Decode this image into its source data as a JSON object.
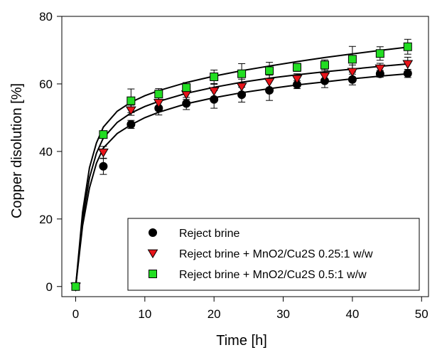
{
  "chart_data": {
    "type": "scatter",
    "xlabel": "Time [h]",
    "ylabel": "Copper disolution [%]",
    "xlim": [
      -2,
      51
    ],
    "ylim": [
      -3,
      80
    ],
    "xticks": [
      "0",
      "10",
      "20",
      "30",
      "40",
      "50"
    ],
    "xtick_values": [
      0,
      10,
      20,
      30,
      40,
      50
    ],
    "yticks": [
      "0",
      "20",
      "40",
      "60",
      "80"
    ],
    "ytick_values": [
      0,
      20,
      40,
      60,
      80
    ],
    "legend_position": "bottom-right",
    "series": [
      {
        "name": "Reject brine",
        "marker": "circle",
        "color": "#000000",
        "x": [
          0,
          4,
          8,
          12,
          16,
          20,
          24,
          28,
          32,
          36,
          40,
          44,
          48
        ],
        "y": [
          0,
          35.6,
          48.0,
          52.8,
          54.2,
          55.4,
          56.8,
          58.1,
          59.8,
          60.9,
          61.3,
          63.0,
          63.1
        ],
        "err": [
          0,
          2.4,
          1.2,
          2.0,
          1.8,
          2.6,
          2.2,
          3.0,
          1.2,
          2.0,
          1.6,
          1.0,
          1.2
        ]
      },
      {
        "name": "Reject brine + MnO2/Cu2S 0.25:1 w/w",
        "marker": "triangle-down",
        "color": "#e8141a",
        "x": [
          0,
          4,
          8,
          12,
          16,
          20,
          24,
          28,
          32,
          36,
          40,
          44,
          48
        ],
        "y": [
          0,
          39.7,
          52.2,
          54.4,
          56.9,
          57.9,
          59.2,
          60.6,
          61.5,
          62.3,
          63.6,
          64.6,
          65.9
        ],
        "err": [
          0,
          1.8,
          1.5,
          1.8,
          1.5,
          2.0,
          2.2,
          2.0,
          1.5,
          1.8,
          2.0,
          1.5,
          2.0
        ]
      },
      {
        "name": "Reject brine + MnO2/Cu2S 0.5:1 w/w",
        "marker": "square",
        "color": "#22dd22",
        "x": [
          0,
          4,
          8,
          12,
          16,
          20,
          24,
          28,
          32,
          36,
          40,
          44,
          48
        ],
        "y": [
          0,
          45.0,
          55.0,
          57.0,
          58.9,
          62.1,
          63.0,
          63.9,
          64.9,
          65.6,
          67.3,
          69.0,
          71.0
        ],
        "err": [
          0,
          0.8,
          3.5,
          1.6,
          1.5,
          2.0,
          3.0,
          2.5,
          1.2,
          1.5,
          3.8,
          2.0,
          2.2
        ]
      }
    ],
    "fits": [
      {
        "x": [
          0,
          1,
          2,
          3,
          4,
          6,
          8,
          10,
          12,
          16,
          20,
          24,
          28,
          32,
          36,
          40,
          44,
          48
        ],
        "y": [
          0,
          18.0,
          29.2,
          36.5,
          41.0,
          45.3,
          47.9,
          50.0,
          51.6,
          54.1,
          55.9,
          57.4,
          58.6,
          59.7,
          60.6,
          61.5,
          62.3,
          63.0
        ]
      },
      {
        "x": [
          0,
          1,
          2,
          3,
          4,
          6,
          8,
          10,
          12,
          16,
          20,
          24,
          28,
          32,
          36,
          40,
          44,
          48
        ],
        "y": [
          0,
          20.0,
          32.2,
          39.5,
          44.0,
          48.6,
          51.4,
          53.3,
          54.8,
          57.2,
          59.0,
          60.5,
          61.7,
          62.7,
          63.6,
          64.4,
          65.2,
          65.9
        ]
      },
      {
        "x": [
          0,
          1,
          2,
          3,
          4,
          6,
          8,
          10,
          12,
          16,
          20,
          24,
          28,
          32,
          36,
          40,
          44,
          48
        ],
        "y": [
          0,
          22.0,
          35.2,
          42.5,
          47.2,
          51.9,
          54.6,
          56.5,
          58.0,
          60.4,
          62.3,
          63.9,
          65.3,
          66.6,
          67.8,
          68.9,
          69.9,
          70.9
        ]
      }
    ]
  }
}
